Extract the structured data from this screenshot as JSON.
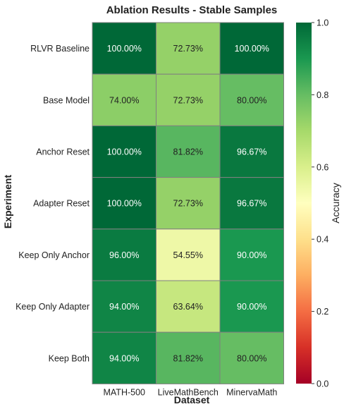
{
  "chart_data": {
    "type": "heatmap",
    "title": "Ablation Results - Stable Samples",
    "xlabel": "Dataset",
    "ylabel": "Experiment",
    "x_categories": [
      "MATH-500",
      "LiveMathBench",
      "MinervaMath"
    ],
    "y_categories": [
      "RLVR Baseline",
      "Base Model",
      "Anchor Reset",
      "Adapter Reset",
      "Keep Only Anchor",
      "Keep Only Adapter",
      "Keep Both"
    ],
    "values": [
      [
        1.0,
        0.7273,
        1.0
      ],
      [
        0.74,
        0.7273,
        0.8
      ],
      [
        1.0,
        0.8182,
        0.9667
      ],
      [
        1.0,
        0.7273,
        0.9667
      ],
      [
        0.96,
        0.5455,
        0.9
      ],
      [
        0.94,
        0.6364,
        0.9
      ],
      [
        0.94,
        0.8182,
        0.8
      ]
    ],
    "cell_labels": [
      [
        "100.00%",
        "72.73%",
        "100.00%"
      ],
      [
        "74.00%",
        "72.73%",
        "80.00%"
      ],
      [
        "100.00%",
        "81.82%",
        "96.67%"
      ],
      [
        "100.00%",
        "72.73%",
        "96.67%"
      ],
      [
        "96.00%",
        "54.55%",
        "90.00%"
      ],
      [
        "94.00%",
        "63.64%",
        "90.00%"
      ],
      [
        "94.00%",
        "81.82%",
        "80.00%"
      ]
    ],
    "colorbar": {
      "label": "Accuracy",
      "range": [
        0.0,
        1.0
      ],
      "ticks": [
        "0.0",
        "0.2",
        "0.4",
        "0.6",
        "0.8",
        "1.0"
      ],
      "colormap": "RdYlGn"
    }
  }
}
